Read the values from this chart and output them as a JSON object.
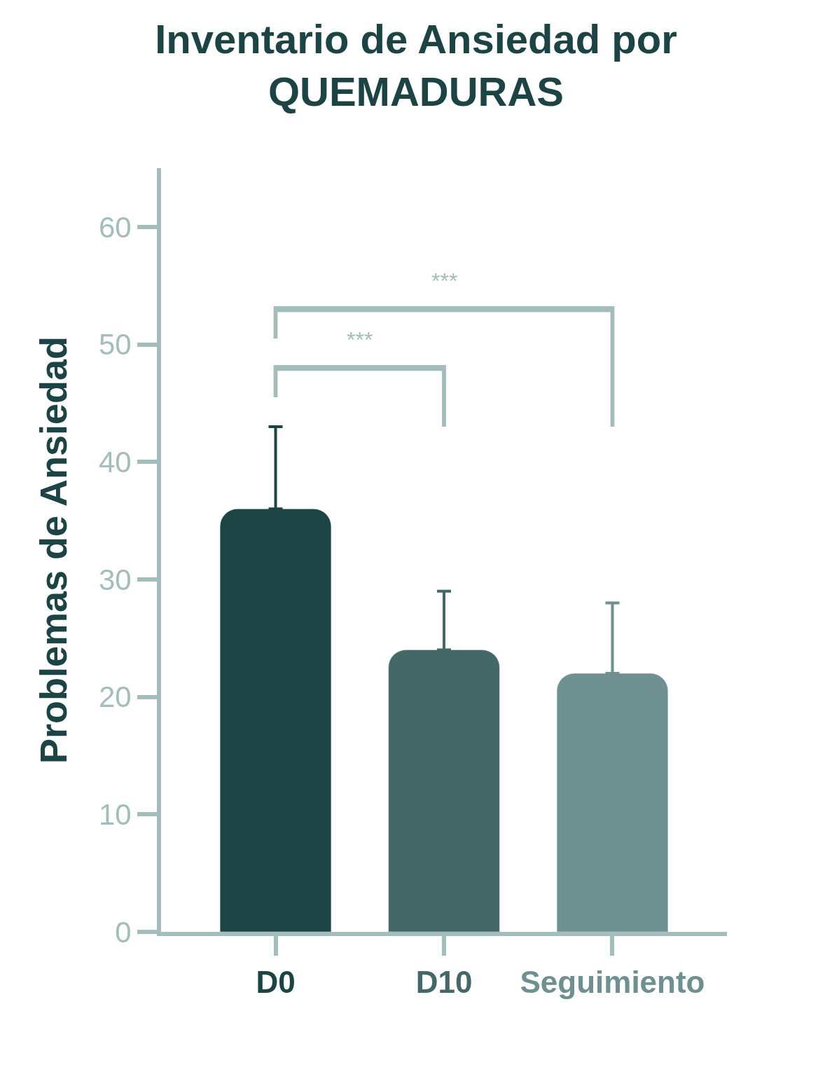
{
  "chart_data": {
    "type": "bar",
    "title": "Inventario de Ansiedad por\nQUEMADURAS",
    "ylabel": "Problemas de Ansiedad",
    "categories": [
      "D0",
      "D10",
      "Seguimiento"
    ],
    "values": [
      36,
      24,
      22
    ],
    "errors": [
      7,
      5,
      6
    ],
    "colors": [
      "#1c4444",
      "#446868",
      "#6e9090"
    ],
    "ylim": [
      0,
      65
    ],
    "yticks": [
      0,
      10,
      20,
      30,
      40,
      50,
      60
    ],
    "annotations": [
      "***",
      "***"
    ]
  }
}
